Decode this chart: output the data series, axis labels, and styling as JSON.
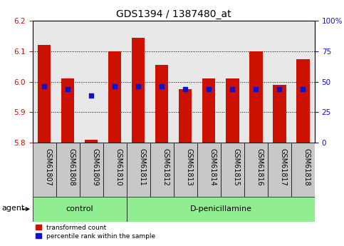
{
  "title": "GDS1394 / 1387480_at",
  "samples": [
    "GSM61807",
    "GSM61808",
    "GSM61809",
    "GSM61810",
    "GSM61811",
    "GSM61812",
    "GSM61813",
    "GSM61814",
    "GSM61815",
    "GSM61816",
    "GSM61817",
    "GSM61818"
  ],
  "red_values": [
    6.12,
    6.01,
    5.81,
    6.1,
    6.145,
    6.055,
    5.975,
    6.01,
    6.01,
    6.1,
    5.99,
    6.075
  ],
  "blue_values": [
    5.985,
    5.975,
    5.955,
    5.985,
    5.985,
    5.985,
    5.975,
    5.975,
    5.975,
    5.975,
    5.975,
    5.975
  ],
  "bar_base": 5.8,
  "ylim_left": [
    5.8,
    6.2
  ],
  "ylim_right": [
    0,
    100
  ],
  "yticks_left": [
    5.8,
    5.9,
    6.0,
    6.1,
    6.2
  ],
  "yticks_right": [
    0,
    25,
    50,
    75,
    100
  ],
  "red_color": "#cc1100",
  "blue_color": "#1111cc",
  "bar_width": 0.55,
  "n_control": 4,
  "n_treatment": 8,
  "control_label": "control",
  "treatment_label": "D-penicillamine",
  "agent_label": "agent",
  "legend_red": "transformed count",
  "legend_blue": "percentile rank within the sample",
  "plot_bg_color": "#e8e8e8",
  "xlabel_bg_color": "#c8c8c8",
  "agent_bg_color": "#90ee90",
  "title_fontsize": 10,
  "tick_fontsize": 7.5,
  "label_fontsize": 8
}
